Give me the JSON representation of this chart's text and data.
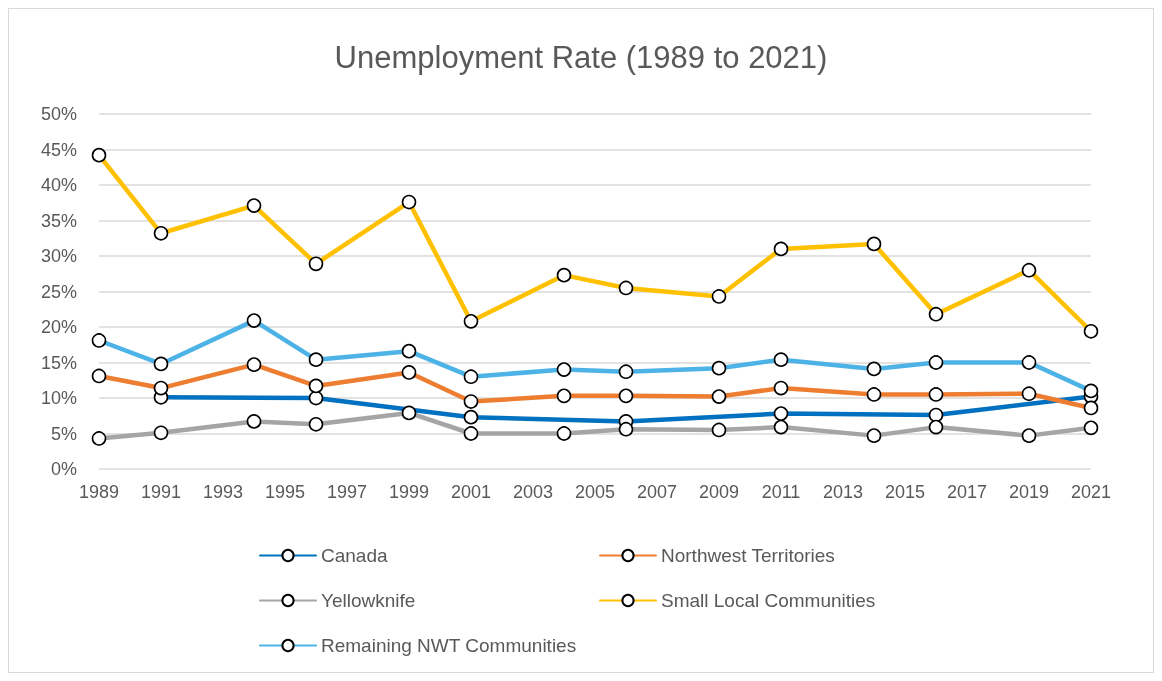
{
  "chart_data": {
    "type": "line",
    "title": "Unemployment Rate (1989 to 2021)",
    "x": [
      1989,
      1991,
      1994,
      1996,
      1999,
      2001,
      2004,
      2006,
      2009,
      2011,
      2014,
      2016,
      2019,
      2021
    ],
    "series": [
      {
        "name": "Canada",
        "color": "#0070c0",
        "x": [
          1991,
          1996,
          2001,
          2006,
          2011,
          2016,
          2021
        ],
        "values": [
          10.1,
          10.0,
          7.3,
          6.7,
          7.8,
          7.6,
          10.2
        ]
      },
      {
        "name": "Northwest Territories",
        "color": "#ed7d31",
        "values": [
          13.1,
          11.4,
          14.7,
          11.7,
          13.6,
          9.5,
          10.3,
          10.3,
          10.2,
          11.4,
          10.5,
          10.5,
          10.6,
          8.6
        ]
      },
      {
        "name": "Yellowknife",
        "color": "#a5a5a5",
        "values": [
          4.3,
          5.1,
          6.7,
          6.3,
          7.9,
          5.0,
          5.0,
          5.6,
          5.5,
          5.9,
          4.7,
          5.9,
          4.7,
          5.8
        ]
      },
      {
        "name": "Small Local Communities",
        "color": "#ffc000",
        "values": [
          44.2,
          33.2,
          37.1,
          28.9,
          37.6,
          20.8,
          27.3,
          25.5,
          24.3,
          31.0,
          31.7,
          21.8,
          28.0,
          19.4
        ]
      },
      {
        "name": "Remaining NWT Communities",
        "color": "#4db3e6",
        "values": [
          18.1,
          14.8,
          20.9,
          15.4,
          16.6,
          13.0,
          14.0,
          13.7,
          14.2,
          15.4,
          14.1,
          15.0,
          15.0,
          11.0
        ]
      }
    ],
    "xlim": [
      1989,
      2021
    ],
    "xticks": [
      1989,
      1991,
      1993,
      1995,
      1997,
      1999,
      2001,
      2003,
      2005,
      2007,
      2009,
      2011,
      2013,
      2015,
      2017,
      2019,
      2021
    ],
    "ylim": [
      0,
      50
    ],
    "yticks": [
      {
        "value": 0,
        "label": "0%"
      },
      {
        "value": 5,
        "label": "5%"
      },
      {
        "value": 10,
        "label": "10%"
      },
      {
        "value": 15,
        "label": "15%"
      },
      {
        "value": 20,
        "label": "20%"
      },
      {
        "value": 25,
        "label": "25%"
      },
      {
        "value": 30,
        "label": "30%"
      },
      {
        "value": 35,
        "label": "35%"
      },
      {
        "value": 40,
        "label": "40%"
      },
      {
        "value": 45,
        "label": "45%"
      },
      {
        "value": 50,
        "label": "50%"
      }
    ],
    "grid": "y",
    "legend": "bottom",
    "marker": "circle",
    "line_style": "solid"
  }
}
